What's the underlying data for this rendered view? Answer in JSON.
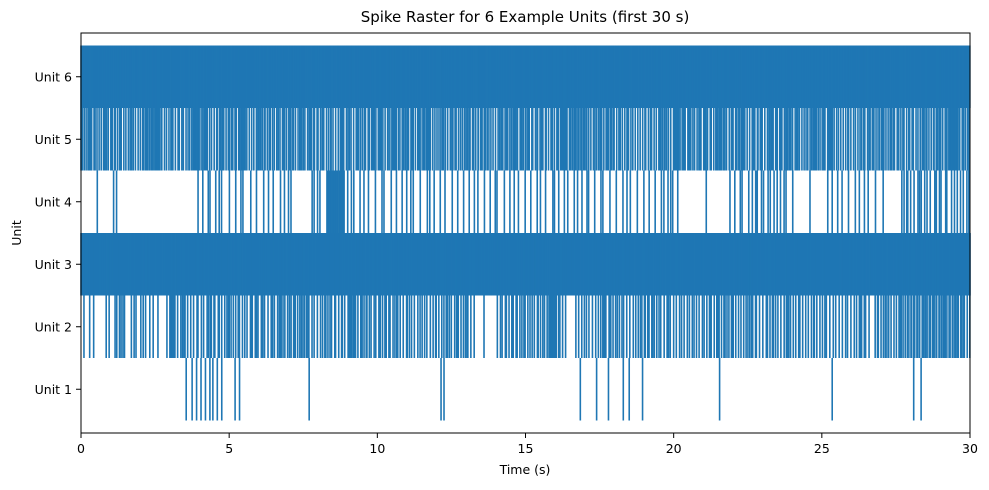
{
  "chart_data": {
    "type": "raster",
    "title": "Spike Raster for 6 Example Units (first 30 s)",
    "xlabel": "Time (s)",
    "ylabel": "Unit",
    "xlim": [
      0,
      30
    ],
    "xticks": [
      0,
      5,
      10,
      15,
      20,
      25,
      30
    ],
    "grid": false,
    "color": "#1f77b4",
    "units": [
      {
        "label": "Unit 1",
        "spikes": [
          3.55,
          3.75,
          3.9,
          4.05,
          4.2,
          4.35,
          4.45,
          4.6,
          4.75,
          5.2,
          5.35,
          7.7,
          12.15,
          12.25,
          16.85,
          17.4,
          17.8,
          18.3,
          18.5,
          18.95,
          21.55,
          25.35,
          28.1,
          28.35
        ]
      },
      {
        "label": "Unit 2",
        "ranges": [
          [
            0.1,
            0.55,
            0.12
          ],
          [
            1.15,
            1.5,
            0.1
          ],
          [
            1.7,
            2.6,
            0.1
          ],
          [
            3.0,
            13.3,
            0.07
          ],
          [
            14.05,
            16.4,
            0.07
          ],
          [
            16.7,
            26.6,
            0.07
          ],
          [
            26.8,
            30.0,
            0.06
          ]
        ],
        "spikes": [
          0.85,
          0.95,
          2.9,
          13.6
        ]
      },
      {
        "label": "Unit 3",
        "ranges": [
          [
            0.0,
            30.0,
            0.015
          ]
        ]
      },
      {
        "label": "Unit 4",
        "ranges": [
          [
            3.95,
            7.1,
            0.18
          ],
          [
            7.8,
            8.1,
            0.12
          ],
          [
            8.3,
            8.9,
            0.03
          ],
          [
            9.0,
            20.2,
            0.15
          ],
          [
            21.9,
            24.1,
            0.15
          ],
          [
            25.2,
            27.2,
            0.16
          ],
          [
            27.7,
            30.0,
            0.1
          ]
        ],
        "spikes": [
          0.55,
          1.1,
          1.2,
          21.1,
          24.6
        ]
      },
      {
        "label": "Unit 5",
        "ranges": [
          [
            0.0,
            30.0,
            0.055
          ]
        ]
      },
      {
        "label": "Unit 6",
        "ranges": [
          [
            0.0,
            30.0,
            0.022
          ]
        ]
      }
    ]
  }
}
